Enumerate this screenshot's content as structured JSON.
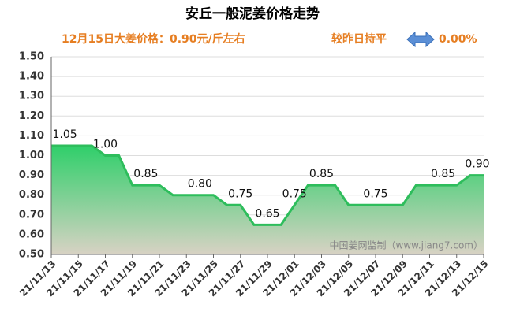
{
  "chart_data": {
    "type": "area",
    "title": "安丘一般泥姜价格走势",
    "price_note": "12月15日大姜价格：0.90元/斤左右",
    "change_text": "较昨日持平",
    "change_value": "0.00%",
    "watermark": "中国姜网监制（www.jiang7.com）",
    "categories": [
      "21/11/13",
      null,
      "21/11/15",
      null,
      "21/11/17",
      null,
      "21/11/19",
      null,
      "21/11/21",
      null,
      "21/11/23",
      null,
      "21/11/25",
      null,
      "21/11/27",
      null,
      "21/11/29",
      null,
      "21/12/01",
      null,
      "21/12/03",
      null,
      "21/12/05",
      null,
      "21/12/07",
      null,
      "21/12/09",
      null,
      "21/12/11",
      null,
      "21/12/13",
      null,
      "21/12/15"
    ],
    "values": [
      1.05,
      1.05,
      1.05,
      1.05,
      1.0,
      1.0,
      0.85,
      0.85,
      0.85,
      0.8,
      0.8,
      0.8,
      0.8,
      0.75,
      0.75,
      0.65,
      0.65,
      0.65,
      0.75,
      0.85,
      0.85,
      0.85,
      0.75,
      0.75,
      0.75,
      0.75,
      0.75,
      0.85,
      0.85,
      0.85,
      0.85,
      0.9,
      0.9
    ],
    "value_labels": [
      null,
      "1.05",
      null,
      null,
      "1.00",
      null,
      null,
      "0.85",
      null,
      null,
      null,
      "0.80",
      null,
      null,
      "0.75",
      null,
      "0.65",
      null,
      "0.75",
      null,
      "0.85",
      null,
      null,
      null,
      "0.75",
      null,
      null,
      null,
      null,
      "0.85",
      null,
      null,
      "0.90"
    ],
    "color": "#2ebd5c",
    "ylim": [
      0.5,
      1.5
    ],
    "yticks": [
      {
        "value": 0.5,
        "label": "0.50"
      },
      {
        "value": 0.6,
        "label": "0.60"
      },
      {
        "value": 0.7,
        "label": "0.70"
      },
      {
        "value": 0.8,
        "label": "0.80"
      },
      {
        "value": 0.9,
        "label": "0.90"
      },
      {
        "value": 1.0,
        "label": "1.00"
      },
      {
        "value": 1.1,
        "label": "1.10"
      },
      {
        "value": 1.2,
        "label": "1.20"
      },
      {
        "value": 1.3,
        "label": "1.30"
      },
      {
        "value": 1.4,
        "label": "1.40"
      },
      {
        "value": 1.5,
        "label": "1.50"
      }
    ],
    "grid": true
  }
}
